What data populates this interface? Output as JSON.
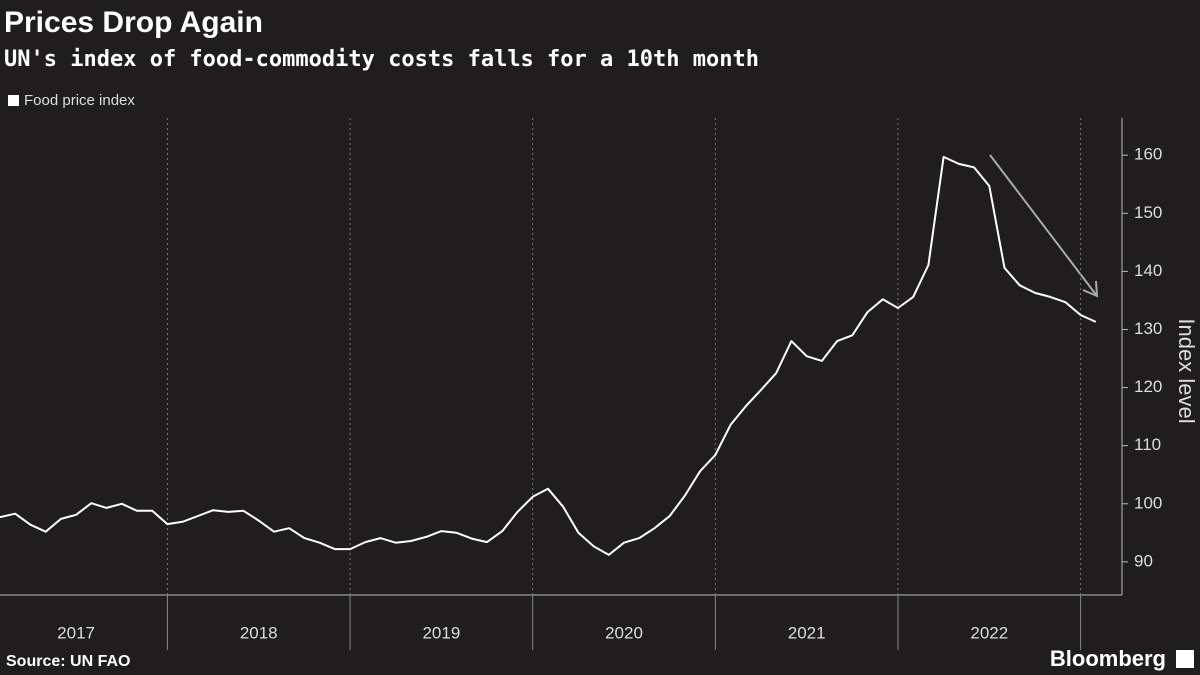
{
  "chart_data": {
    "type": "line",
    "title": "Prices Drop Again",
    "subtitle": "UN's index of food-commodity costs falls for a 10th month",
    "y_label": "Index level",
    "source": "Source: UN FAO",
    "brand": "Bloomberg",
    "x": [
      "2017-01",
      "2017-02",
      "2017-03",
      "2017-04",
      "2017-05",
      "2017-06",
      "2017-07",
      "2017-08",
      "2017-09",
      "2017-10",
      "2017-11",
      "2017-12",
      "2018-01",
      "2018-02",
      "2018-03",
      "2018-04",
      "2018-05",
      "2018-06",
      "2018-07",
      "2018-08",
      "2018-09",
      "2018-10",
      "2018-11",
      "2018-12",
      "2019-01",
      "2019-02",
      "2019-03",
      "2019-04",
      "2019-05",
      "2019-06",
      "2019-07",
      "2019-08",
      "2019-09",
      "2019-10",
      "2019-11",
      "2019-12",
      "2020-01",
      "2020-02",
      "2020-03",
      "2020-04",
      "2020-05",
      "2020-06",
      "2020-07",
      "2020-08",
      "2020-09",
      "2020-10",
      "2020-11",
      "2020-12",
      "2021-01",
      "2021-02",
      "2021-03",
      "2021-04",
      "2021-05",
      "2021-06",
      "2021-07",
      "2021-08",
      "2021-09",
      "2021-10",
      "2021-11",
      "2021-12",
      "2022-01",
      "2022-02",
      "2022-03",
      "2022-04",
      "2022-05",
      "2022-06",
      "2022-07",
      "2022-08",
      "2022-09",
      "2022-10",
      "2022-11",
      "2022-12",
      "2023-01"
    ],
    "year_labels": [
      "2017",
      "2018",
      "2019",
      "2020",
      "2021",
      "2022"
    ],
    "series": [
      {
        "name": "Food price index",
        "color": "#ffffff",
        "values": [
          97.7,
          98.3,
          96.4,
          95.2,
          97.4,
          98.1,
          100.1,
          99.3,
          100.0,
          98.8,
          98.8,
          96.5,
          96.9,
          97.9,
          98.9,
          98.6,
          98.8,
          97.1,
          95.2,
          95.8,
          94.1,
          93.3,
          92.2,
          92.2,
          93.4,
          94.1,
          93.3,
          93.6,
          94.3,
          95.3,
          95.0,
          94.0,
          93.4,
          95.3,
          98.6,
          101.2,
          102.6,
          99.5,
          95.0,
          92.7,
          91.2,
          93.3,
          94.1,
          95.8,
          97.9,
          101.4,
          105.6,
          108.4,
          113.6,
          116.8,
          119.6,
          122.5,
          128.0,
          125.4,
          124.6,
          128.0,
          129.0,
          133.0,
          135.2,
          133.7,
          135.6,
          141.1,
          159.7,
          158.5,
          157.9,
          154.7,
          140.6,
          137.6,
          136.3,
          135.6,
          134.7,
          132.5,
          131.3
        ]
      }
    ],
    "ylim": [
      84.3,
      166.4
    ],
    "yticks": [
      90,
      100,
      110,
      120,
      130,
      140,
      150,
      160
    ],
    "grid": "x"
  }
}
